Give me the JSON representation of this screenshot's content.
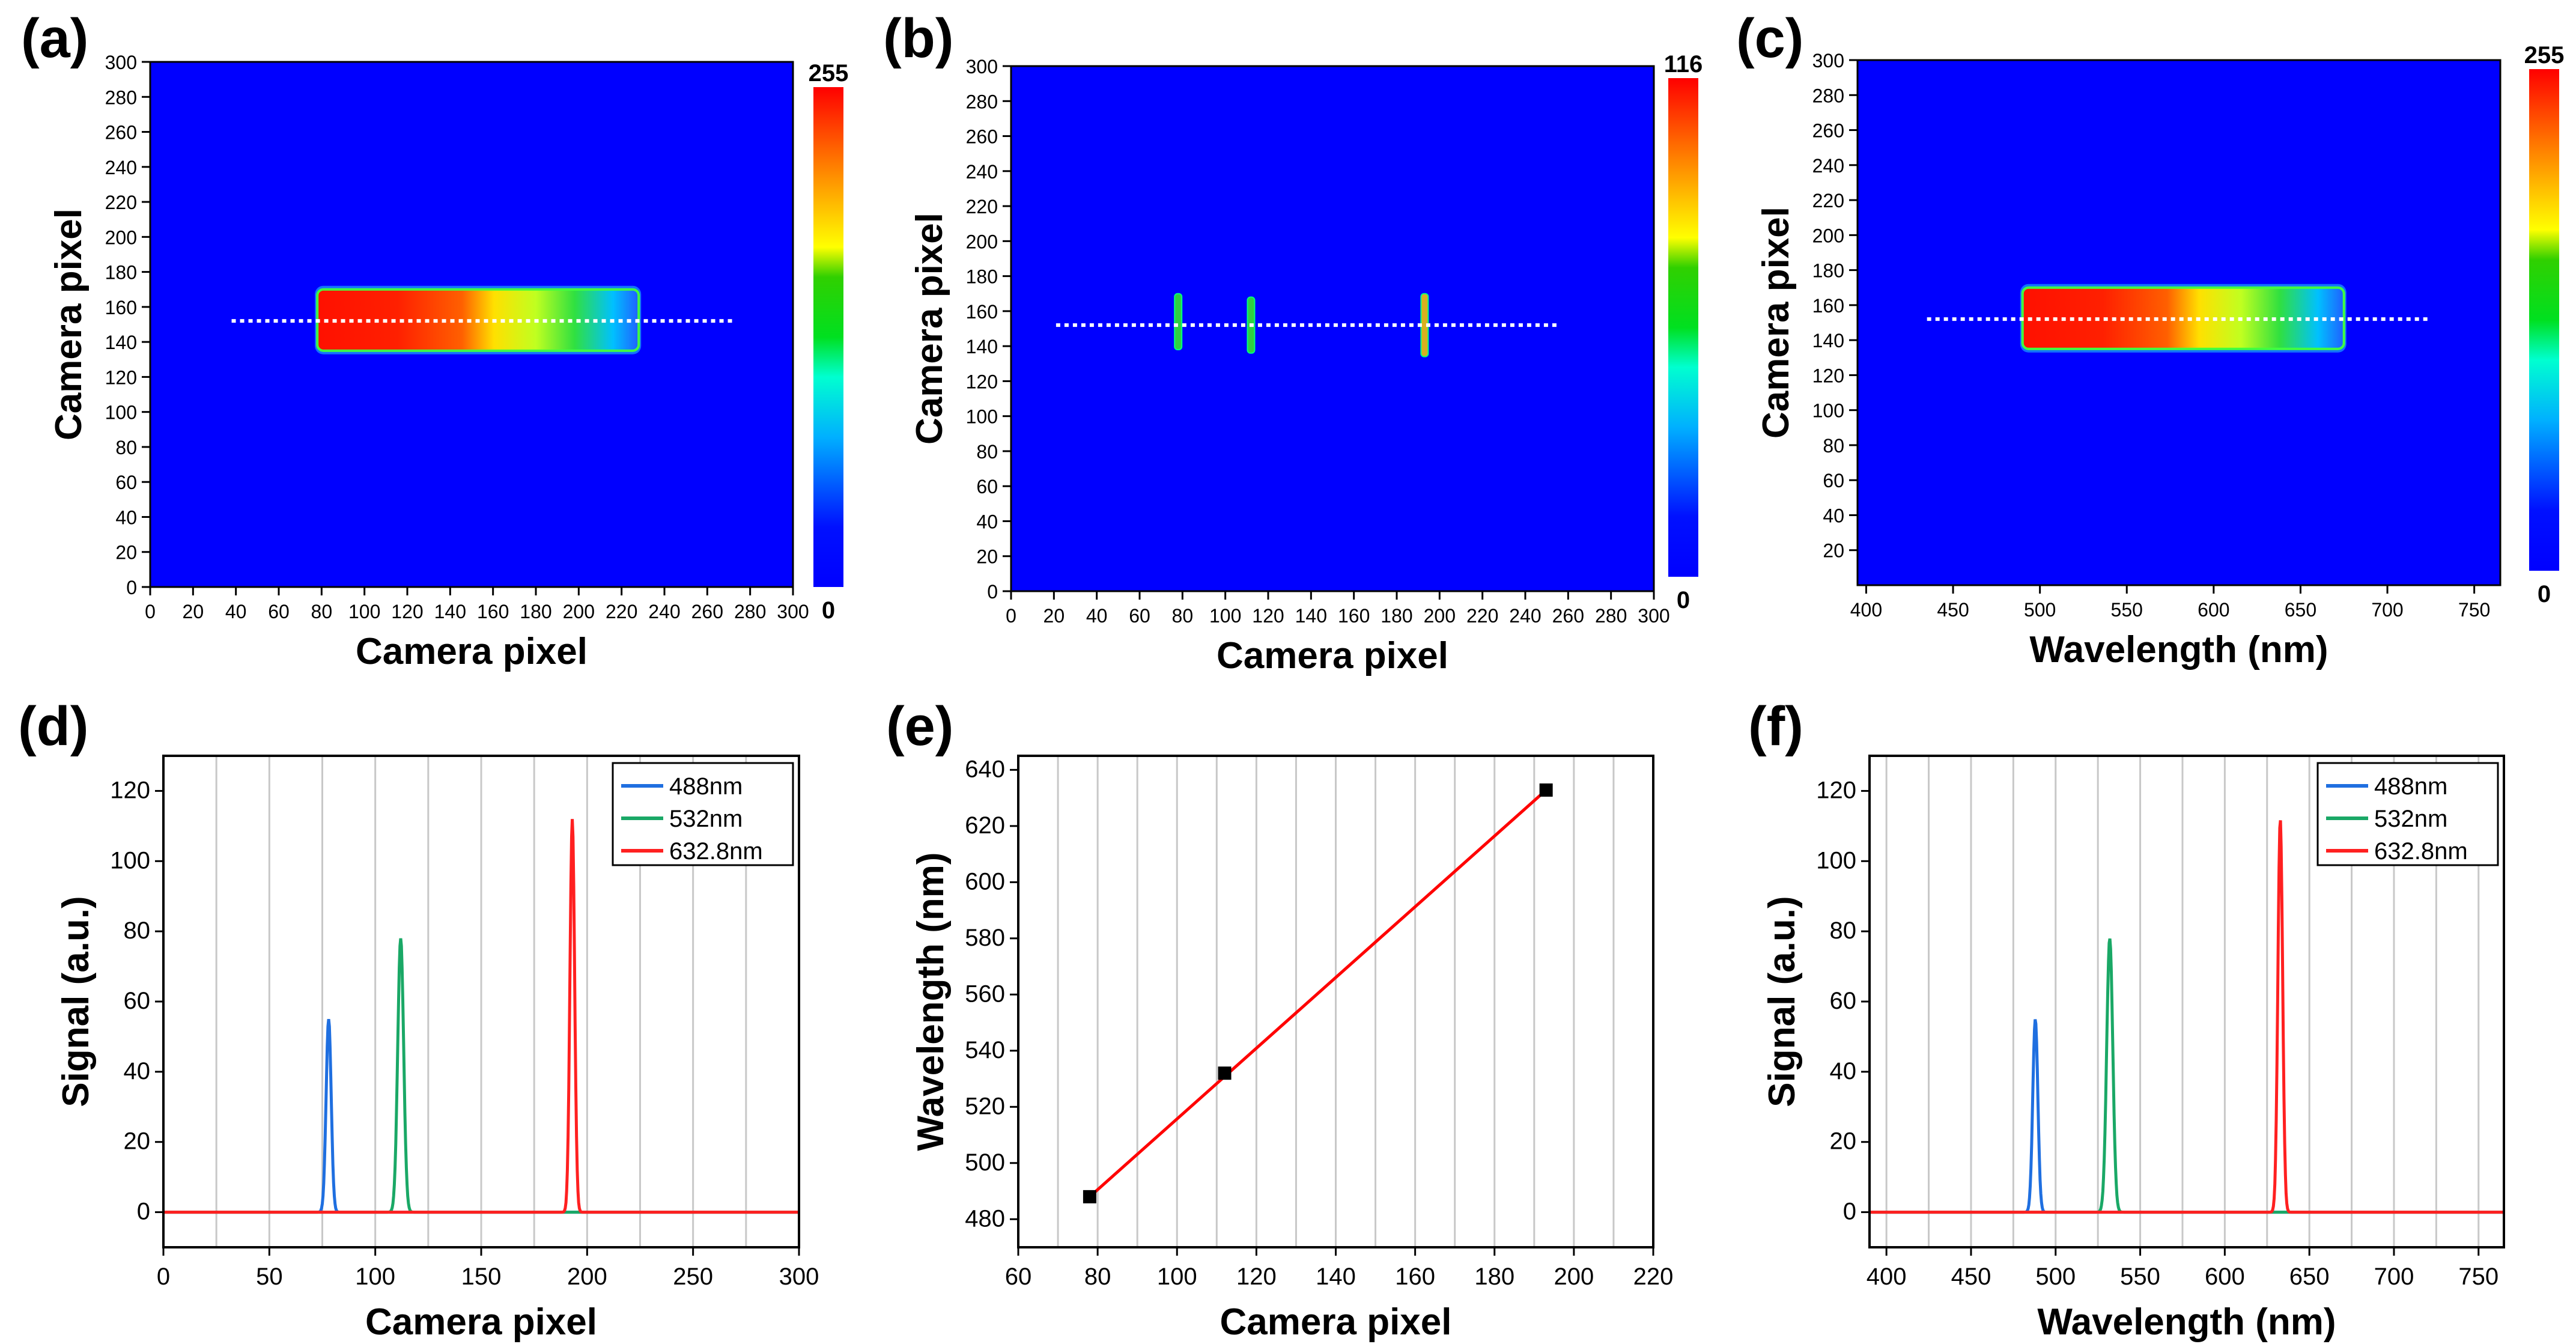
{
  "figure": {
    "colors": {
      "background_blue": "#0000ff",
      "line_488": "#1f6fe0",
      "line_532": "#1aa866",
      "line_632": "#ff2020",
      "fit_line": "#ff0000",
      "marker": "#000000",
      "grid": "#c8c8c8",
      "dotted_line": "#ffffff"
    },
    "chart_data": [
      {
        "id": "a",
        "panel_label": "(a)",
        "type": "heatmap",
        "xlabel": "Camera pixel",
        "ylabel": "Camera pixel",
        "xlim": [
          0,
          300
        ],
        "ylim": [
          0,
          300
        ],
        "xticks": [
          "0",
          "20",
          "40",
          "60",
          "80",
          "100",
          "120",
          "140",
          "160",
          "180",
          "200",
          "220",
          "240",
          "260",
          "280",
          "300"
        ],
        "yticks": [
          "0",
          "20",
          "40",
          "60",
          "80",
          "100",
          "120",
          "140",
          "160",
          "180",
          "200",
          "220",
          "240",
          "260",
          "280",
          "300"
        ],
        "colorbar": {
          "max_label": "255",
          "min_label": "0"
        },
        "band": {
          "x_start": 78,
          "x_end": 228,
          "y_start": 135,
          "y_end": 170
        },
        "dotted_line": {
          "x_start": 38,
          "x_end": 272,
          "y": 152
        }
      },
      {
        "id": "b",
        "panel_label": "(b)",
        "type": "heatmap",
        "xlabel": "Camera pixel",
        "ylabel": "Camera pixel",
        "xlim": [
          0,
          300
        ],
        "ylim": [
          0,
          300
        ],
        "xticks": [
          "0",
          "20",
          "40",
          "60",
          "80",
          "100",
          "120",
          "140",
          "160",
          "180",
          "200",
          "220",
          "240",
          "260",
          "280",
          "300"
        ],
        "yticks": [
          "0",
          "20",
          "40",
          "60",
          "80",
          "100",
          "120",
          "140",
          "160",
          "180",
          "200",
          "220",
          "240",
          "260",
          "280",
          "300"
        ],
        "colorbar": {
          "max_label": "116",
          "min_label": "0"
        },
        "lines": [
          {
            "x": 78,
            "y_start": 138,
            "y_end": 170,
            "color": "#2fd040"
          },
          {
            "x": 112,
            "y_start": 136,
            "y_end": 168,
            "color": "#2fd040"
          },
          {
            "x": 193,
            "y_start": 134,
            "y_end": 170,
            "color": "#d8b020"
          }
        ],
        "dotted_line": {
          "x_start": 21,
          "x_end": 255,
          "y": 152
        }
      },
      {
        "id": "c",
        "panel_label": "(c)",
        "type": "heatmap",
        "xlabel": "Wavelength (nm)",
        "ylabel": "Camera pixel",
        "xlim": [
          395,
          765
        ],
        "ylim": [
          0,
          300
        ],
        "xticks": [
          "400",
          "450",
          "500",
          "550",
          "600",
          "650",
          "700",
          "750"
        ],
        "yticks": [
          "20",
          "40",
          "60",
          "80",
          "100",
          "120",
          "140",
          "160",
          "180",
          "200",
          "220",
          "240",
          "260",
          "280",
          "300"
        ],
        "colorbar": {
          "max_label": "255",
          "min_label": "0"
        },
        "band": {
          "x_start": 490,
          "x_end": 675,
          "y_start": 135,
          "y_end": 170
        },
        "dotted_line": {
          "x_start": 435,
          "x_end": 725,
          "y": 152
        }
      },
      {
        "id": "d",
        "panel_label": "(d)",
        "type": "line",
        "xlabel": "Camera pixel",
        "ylabel": "Signal (a.u.)",
        "xlim": [
          0,
          300
        ],
        "ylim": [
          -10,
          130
        ],
        "xticks": [
          "0",
          "50",
          "100",
          "150",
          "200",
          "250",
          "300"
        ],
        "yticks": [
          "0",
          "20",
          "40",
          "60",
          "80",
          "100",
          "120"
        ],
        "legend_position": "top-right",
        "series": [
          {
            "name": "488nm",
            "center": 78,
            "peak": 55,
            "width": 1.2
          },
          {
            "name": "532nm",
            "center": 112,
            "peak": 78,
            "width": 1.4
          },
          {
            "name": "632.8nm",
            "center": 193,
            "peak": 112,
            "width": 1.1
          }
        ]
      },
      {
        "id": "e",
        "panel_label": "(e)",
        "type": "scatter",
        "xlabel": "Camera pixel",
        "ylabel": "Wavelength (nm)",
        "xlim": [
          60,
          220
        ],
        "ylim": [
          470,
          645
        ],
        "xticks": [
          "60",
          "80",
          "100",
          "120",
          "140",
          "160",
          "180",
          "200",
          "220"
        ],
        "yticks": [
          "480",
          "500",
          "520",
          "540",
          "560",
          "580",
          "600",
          "620",
          "640"
        ],
        "points": [
          {
            "x": 78,
            "y": 488
          },
          {
            "x": 112,
            "y": 532
          },
          {
            "x": 193,
            "y": 632.8
          }
        ],
        "fit": {
          "x_start": 78,
          "y_start": 488,
          "x_end": 193,
          "y_end": 632.8
        }
      },
      {
        "id": "f",
        "panel_label": "(f)",
        "type": "line",
        "xlabel": "Wavelength (nm)",
        "ylabel": "Signal (a.u.)",
        "xlim": [
          390,
          765
        ],
        "ylim": [
          -10,
          130
        ],
        "xticks": [
          "400",
          "450",
          "500",
          "550",
          "600",
          "650",
          "700",
          "750"
        ],
        "yticks": [
          "0",
          "20",
          "40",
          "60",
          "80",
          "100",
          "120"
        ],
        "legend_position": "top-right",
        "series": [
          {
            "name": "488nm",
            "center": 488,
            "peak": 55,
            "width": 1.5
          },
          {
            "name": "532nm",
            "center": 532,
            "peak": 78,
            "width": 1.8
          },
          {
            "name": "632.8nm",
            "center": 632.8,
            "peak": 112,
            "width": 1.4
          }
        ]
      }
    ]
  }
}
